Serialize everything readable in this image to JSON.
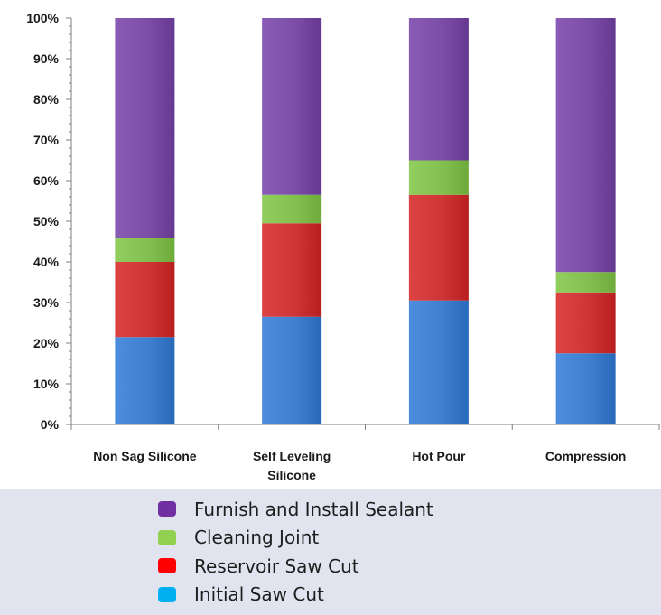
{
  "chart_data": {
    "type": "bar",
    "stacked": true,
    "categories": [
      "Non Sag Silicone",
      "Self Leveling Silicone",
      "Hot Pour",
      "Compression"
    ],
    "category_lines": [
      [
        "Non Sag Silicone"
      ],
      [
        "Self Leveling",
        "Silicone"
      ],
      [
        "Hot Pour"
      ],
      [
        "Compression"
      ]
    ],
    "yticks": [
      "0%",
      "10%",
      "20%",
      "30%",
      "40%",
      "50%",
      "60%",
      "70%",
      "80%",
      "90%",
      "100%"
    ],
    "ylim": [
      0,
      100
    ],
    "y_unit": "%",
    "grid": false,
    "legend_position": "bottom",
    "series": [
      {
        "name": "Initial Saw Cut",
        "values": [
          21.5,
          26.5,
          30.5,
          17.5
        ],
        "color": "#00b0f0",
        "bar_color": "#3f7fd0"
      },
      {
        "name": "Reservoir Saw Cut",
        "values": [
          18.5,
          23.0,
          26.0,
          15.0
        ],
        "color": "#ff0000",
        "bar_color": "#cf3535"
      },
      {
        "name": "Cleaning Joint",
        "values": [
          6.0,
          7.0,
          8.5,
          5.0
        ],
        "color": "#92d050",
        "bar_color": "#84c050"
      },
      {
        "name": "Furnish and Install Sealant",
        "values": [
          54.0,
          43.5,
          35.0,
          62.5
        ],
        "color": "#7030a0",
        "bar_color": "#7b4ea8"
      }
    ]
  }
}
